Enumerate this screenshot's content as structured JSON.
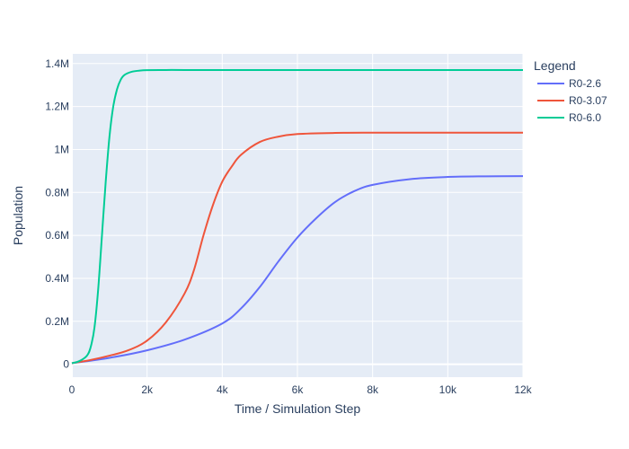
{
  "chart_data": {
    "type": "line",
    "xlabel": "Time / Simulation Step",
    "ylabel": "Population",
    "xlim": [
      0,
      12000
    ],
    "ylim": [
      -60000,
      1445000
    ],
    "grid": true,
    "legend": {
      "title": "Legend",
      "placement": "top-right"
    },
    "x_ticks": [
      {
        "value": 0,
        "label": "0"
      },
      {
        "value": 2000,
        "label": "2k"
      },
      {
        "value": 4000,
        "label": "4k"
      },
      {
        "value": 6000,
        "label": "6k"
      },
      {
        "value": 8000,
        "label": "8k"
      },
      {
        "value": 10000,
        "label": "10k"
      },
      {
        "value": 12000,
        "label": "12k"
      }
    ],
    "y_ticks": [
      {
        "value": 0,
        "label": "0"
      },
      {
        "value": 200000,
        "label": "0.2M"
      },
      {
        "value": 400000,
        "label": "0.4M"
      },
      {
        "value": 600000,
        "label": "0.6M"
      },
      {
        "value": 800000,
        "label": "0.8M"
      },
      {
        "value": 1000000,
        "label": "1M"
      },
      {
        "value": 1200000,
        "label": "1.2M"
      },
      {
        "value": 1400000,
        "label": "1.4M"
      }
    ],
    "series": [
      {
        "name": "R0-2.6",
        "color": "#636efa",
        "x": [
          0,
          1000,
          2000,
          3000,
          4000,
          4500,
          5000,
          5500,
          6000,
          6500,
          7000,
          7500,
          8000,
          9000,
          10000,
          11000,
          12000
        ],
        "y": [
          5000,
          30000,
          65000,
          115000,
          190000,
          260000,
          360000,
          480000,
          590000,
          680000,
          755000,
          805000,
          835000,
          862000,
          872000,
          875000,
          876000
        ]
      },
      {
        "name": "R0-3.07",
        "color": "#ef553b",
        "x": [
          0,
          500,
          1000,
          1500,
          2000,
          2500,
          3000,
          3250,
          3500,
          3750,
          4000,
          4250,
          4500,
          5000,
          5500,
          6000,
          7000,
          8000,
          10000,
          12000
        ],
        "y": [
          5000,
          20000,
          40000,
          65000,
          110000,
          195000,
          330000,
          440000,
          600000,
          740000,
          850000,
          920000,
          975000,
          1035000,
          1060000,
          1072000,
          1077000,
          1078000,
          1078000,
          1078000
        ]
      },
      {
        "name": "R0-6.0",
        "color": "#00cc96",
        "x": [
          0,
          200,
          400,
          500,
          600,
          700,
          800,
          900,
          1000,
          1100,
          1200,
          1300,
          1400,
          1600,
          1800,
          2000,
          2500,
          3000,
          4000,
          6000,
          8000,
          10000,
          12000
        ],
        "y": [
          5000,
          15000,
          40000,
          80000,
          170000,
          350000,
          600000,
          850000,
          1060000,
          1200000,
          1280000,
          1325000,
          1347000,
          1362000,
          1367000,
          1369000,
          1370000,
          1370000,
          1370000,
          1370000,
          1370000,
          1370000,
          1370000
        ]
      }
    ]
  }
}
